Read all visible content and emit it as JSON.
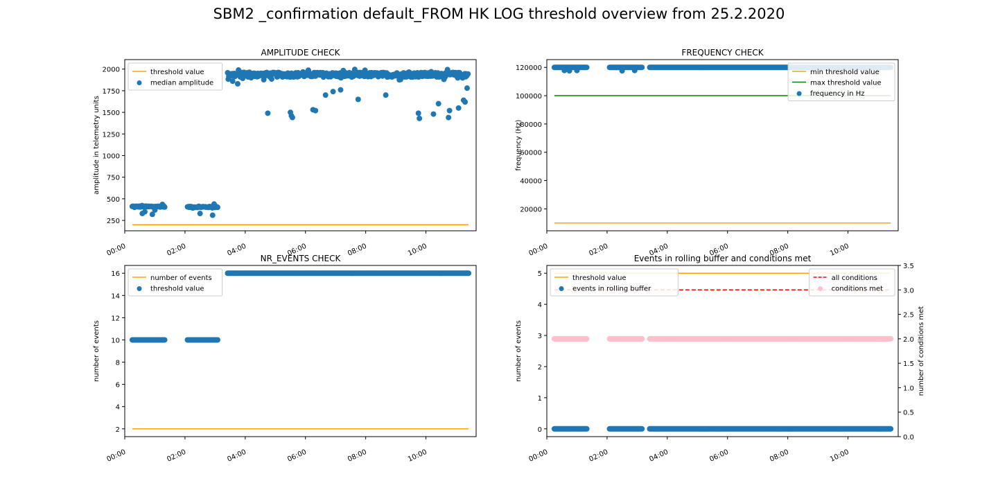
{
  "figure": {
    "title": "SBM2 _confirmation default_FROM HK LOG threshold overview from 25.2.2020"
  },
  "chart_data": [
    {
      "id": "amplitude",
      "type": "scatter",
      "title": "AMPLITUDE CHECK",
      "xlabel": "",
      "ylabel": "amplitude in telemetry units",
      "xlim": [
        "00:00",
        "11:40"
      ],
      "ylim": [
        130,
        2110
      ],
      "xticks": [
        "00:00",
        "02:00",
        "04:00",
        "06:00",
        "08:00",
        "10:00"
      ],
      "yticks": [
        250,
        500,
        750,
        1000,
        1250,
        1500,
        1750,
        2000
      ],
      "yticklabels": [
        "250",
        "500",
        "750",
        "1000",
        "1250",
        "1500",
        "1750",
        "2000"
      ],
      "legend": {
        "position": "top-left",
        "entries": [
          "threshold value",
          "median amplitude"
        ]
      },
      "lines": [
        {
          "name": "threshold value",
          "color": "#ffa500",
          "style": "solid",
          "points": [
            [
              "00:15",
              200
            ],
            [
              "11:25",
              200
            ]
          ]
        }
      ],
      "scatter_series": [
        {
          "name": "median amplitude",
          "color": "#1f77b4",
          "segments": [
            {
              "from": "00:15",
              "to": "01:20",
              "step_min": 1.5,
              "value": 410,
              "jitter": 10
            },
            {
              "from": "02:05",
              "to": "03:05",
              "step_min": 1.5,
              "value": 405,
              "jitter": 10
            },
            {
              "from": "03:25",
              "to": "11:25",
              "step_min": 1.2,
              "value": 1935,
              "jitter": 45
            }
          ],
          "points": [
            [
              "00:35",
              330
            ],
            [
              "00:40",
              350
            ],
            [
              "00:55",
              320
            ],
            [
              "01:00",
              370
            ],
            [
              "01:15",
              435
            ],
            [
              "02:30",
              330
            ],
            [
              "02:55",
              310
            ],
            [
              "02:58",
              440
            ],
            [
              "03:35",
              1860
            ],
            [
              "03:45",
              1830
            ],
            [
              "04:45",
              1490
            ],
            [
              "05:30",
              1500
            ],
            [
              "05:32",
              1460
            ],
            [
              "05:34",
              1440
            ],
            [
              "06:15",
              1530
            ],
            [
              "06:20",
              1520
            ],
            [
              "06:40",
              1700
            ],
            [
              "06:55",
              1740
            ],
            [
              "07:10",
              1760
            ],
            [
              "07:45",
              1650
            ],
            [
              "08:40",
              1700
            ],
            [
              "09:45",
              1490
            ],
            [
              "09:47",
              1430
            ],
            [
              "10:15",
              1480
            ],
            [
              "10:25",
              1600
            ],
            [
              "10:45",
              1440
            ],
            [
              "10:47",
              1520
            ],
            [
              "11:05",
              1550
            ],
            [
              "11:15",
              1640
            ],
            [
              "11:18",
              1620
            ],
            [
              "11:22",
              1780
            ]
          ]
        }
      ]
    },
    {
      "id": "frequency",
      "type": "scatter",
      "title": "FREQUENCY CHECK",
      "xlabel": "",
      "ylabel": "frequency (Hz)",
      "xlim": [
        "00:00",
        "11:40"
      ],
      "ylim": [
        4500,
        125500
      ],
      "xticks": [
        "00:00",
        "02:00",
        "04:00",
        "06:00",
        "08:00",
        "10:00"
      ],
      "yticks": [
        20000,
        40000,
        60000,
        80000,
        100000,
        120000
      ],
      "yticklabels": [
        "20000",
        "40000",
        "60000",
        "80000",
        "100000",
        "120000"
      ],
      "legend": {
        "position": "top-right",
        "entries": [
          "min threshold value",
          "max threshold value",
          "frequency in Hz"
        ]
      },
      "lines": [
        {
          "name": "min threshold value",
          "color": "#ffa500",
          "style": "solid",
          "points": [
            [
              "00:15",
              10000
            ],
            [
              "11:25",
              10000
            ]
          ]
        },
        {
          "name": "max threshold value",
          "color": "#008000",
          "style": "solid",
          "points": [
            [
              "00:15",
              100000
            ],
            [
              "11:25",
              100000
            ]
          ]
        }
      ],
      "scatter_series": [
        {
          "name": "frequency in Hz",
          "color": "#1f77b4",
          "segments": [
            {
              "from": "00:15",
              "to": "01:20",
              "step_min": 1.5,
              "value": 120000,
              "jitter": 0
            },
            {
              "from": "02:05",
              "to": "03:10",
              "step_min": 1.5,
              "value": 120000,
              "jitter": 0
            },
            {
              "from": "03:25",
              "to": "11:25",
              "step_min": 1.5,
              "value": 120000,
              "jitter": 0
            }
          ],
          "points": [
            [
              "00:35",
              117800
            ],
            [
              "00:45",
              117600
            ],
            [
              "01:00",
              117800
            ],
            [
              "02:30",
              117600
            ],
            [
              "02:55",
              117800
            ]
          ]
        }
      ]
    },
    {
      "id": "nr_events",
      "type": "scatter",
      "title": "NR_EVENTS CHECK",
      "xlabel": "",
      "ylabel": "number of events",
      "xlim": [
        "00:00",
        "11:40"
      ],
      "ylim": [
        1.3,
        16.7
      ],
      "xticks": [
        "00:00",
        "02:00",
        "04:00",
        "06:00",
        "08:00",
        "10:00"
      ],
      "yticks": [
        2,
        4,
        6,
        8,
        10,
        12,
        14,
        16
      ],
      "yticklabels": [
        "2",
        "4",
        "6",
        "8",
        "10",
        "12",
        "14",
        "16"
      ],
      "legend": {
        "position": "top-left",
        "entries": [
          "number of events",
          "threshold value"
        ]
      },
      "lines": [
        {
          "name": "number of events",
          "color": "#ffa500",
          "style": "solid",
          "points": [
            [
              "00:15",
              2
            ],
            [
              "11:25",
              2
            ]
          ]
        }
      ],
      "scatter_series": [
        {
          "name": "threshold value",
          "color": "#1f77b4",
          "segments": [
            {
              "from": "00:15",
              "to": "01:20",
              "step_min": 1.5,
              "value": 10,
              "jitter": 0
            },
            {
              "from": "02:05",
              "to": "03:05",
              "step_min": 1.5,
              "value": 10,
              "jitter": 0
            },
            {
              "from": "03:25",
              "to": "11:25",
              "step_min": 1.5,
              "value": 16,
              "jitter": 0
            }
          ],
          "points": []
        }
      ]
    },
    {
      "id": "rolling_buffer",
      "type": "scatter",
      "title": "Events in rolling buffer and conditions met",
      "xlabel": "",
      "ylabel": "number of events",
      "y2label": "number of conditions met",
      "xlim": [
        "00:00",
        "11:40"
      ],
      "ylim": [
        -0.25,
        5.25
      ],
      "y2lim": [
        0.0,
        3.5
      ],
      "xticks": [
        "00:00",
        "02:00",
        "04:00",
        "06:00",
        "08:00",
        "10:00"
      ],
      "yticks": [
        0,
        1,
        2,
        3,
        4,
        5
      ],
      "yticklabels": [
        "0",
        "1",
        "2",
        "3",
        "4",
        "5"
      ],
      "y2ticks": [
        0.0,
        0.5,
        1.0,
        1.5,
        2.0,
        2.5,
        3.0,
        3.5
      ],
      "y2ticklabels": [
        "0.0",
        "0.5",
        "1.0",
        "1.5",
        "2.0",
        "2.5",
        "3.0",
        "3.5"
      ],
      "legend": {
        "position": "top-left",
        "entries": [
          "threshold value",
          "events in rolling buffer"
        ]
      },
      "legend2": {
        "position": "top-right",
        "entries": [
          "all conditions",
          "conditions met"
        ]
      },
      "lines": [
        {
          "name": "threshold value",
          "color": "#ffa500",
          "style": "solid",
          "axis": "y",
          "points": [
            [
              "00:15",
              5
            ],
            [
              "11:25",
              5
            ]
          ]
        },
        {
          "name": "all conditions",
          "color": "#ff0000",
          "style": "dashed",
          "axis": "y2",
          "points": [
            [
              "00:15",
              3
            ],
            [
              "11:25",
              3
            ]
          ]
        }
      ],
      "scatter_series": [
        {
          "name": "events in rolling buffer",
          "color": "#1f77b4",
          "axis": "y",
          "segments": [
            {
              "from": "00:15",
              "to": "01:20",
              "step_min": 1.5,
              "value": 0,
              "jitter": 0
            },
            {
              "from": "02:05",
              "to": "03:10",
              "step_min": 1.5,
              "value": 0,
              "jitter": 0
            },
            {
              "from": "03:25",
              "to": "11:25",
              "step_min": 1.5,
              "value": 0,
              "jitter": 0
            }
          ],
          "points": []
        },
        {
          "name": "conditions met",
          "color": "#ffc0cb",
          "axis": "y2",
          "segments": [
            {
              "from": "00:15",
              "to": "01:20",
              "step_min": 1.5,
              "value": 2,
              "jitter": 0
            },
            {
              "from": "02:05",
              "to": "03:10",
              "step_min": 1.5,
              "value": 2,
              "jitter": 0
            },
            {
              "from": "03:25",
              "to": "11:25",
              "step_min": 1.5,
              "value": 2,
              "jitter": 0
            }
          ],
          "points": []
        }
      ]
    }
  ]
}
